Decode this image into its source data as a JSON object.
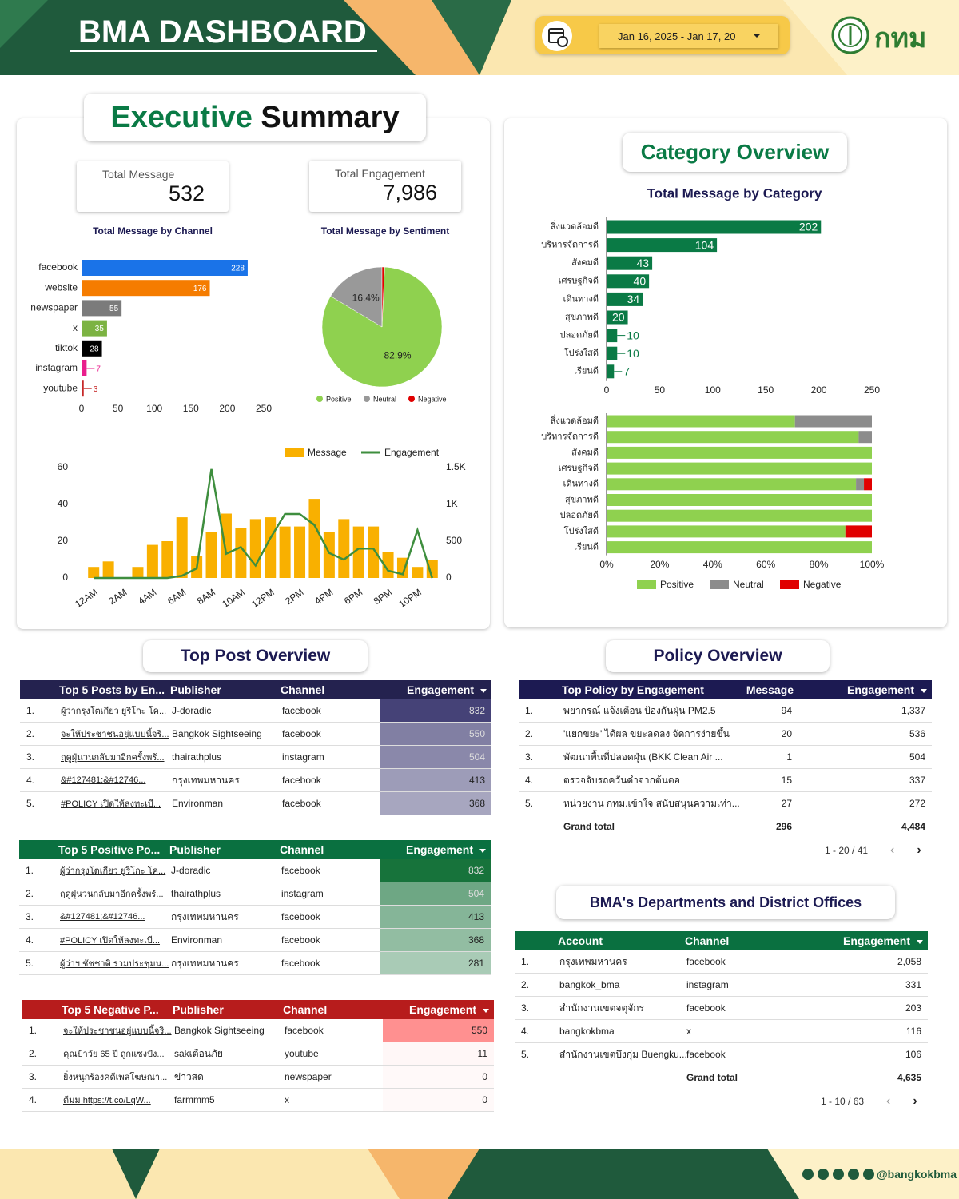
{
  "header": {
    "title": "BMA DASHBOARD",
    "date_range": "Jan 16, 2025 - Jan 17, 20",
    "logo_text": "กทม"
  },
  "executive_summary": {
    "title_1": "Executive",
    "title_2": "Summary",
    "kpis": [
      {
        "label": "Total Message",
        "value": 532
      },
      {
        "label": "Total Engagement",
        "value": "7,986"
      }
    ]
  },
  "category_overview": {
    "title": "Category Overview"
  },
  "chart_data": [
    {
      "type": "hbar",
      "title": "Total Message by Channel",
      "categories": [
        "facebook",
        "website",
        "newspaper",
        "x",
        "tiktok",
        "instagram",
        "youtube"
      ],
      "values": [
        228,
        176,
        55,
        35,
        28,
        7,
        3
      ],
      "colors": [
        "#1a73e8",
        "#f57c00",
        "#7b7b7b",
        "#7cb342",
        "#000000",
        "#e91e8c",
        "#c62828"
      ],
      "xlim": [
        0,
        250
      ],
      "xticks": [
        0,
        50,
        100,
        150,
        200,
        250
      ]
    },
    {
      "type": "pie",
      "title": "Total Message by Sentiment",
      "categories": [
        "Positive",
        "Neutral",
        "Negative"
      ],
      "values": [
        82.9,
        16.4,
        0.7
      ],
      "value_labels": [
        "82.9%",
        "16.4%",
        null
      ],
      "colors": [
        "#8fd14f",
        "#999999",
        "#e00000"
      ]
    },
    {
      "type": "combo",
      "categories": [
        "12AM",
        null,
        "2AM",
        null,
        "4AM",
        null,
        "6AM",
        null,
        "8AM",
        null,
        "10AM",
        null,
        "12PM",
        null,
        "2PM",
        null,
        "4PM",
        null,
        "6PM",
        null,
        "8PM",
        null,
        "10PM",
        null
      ],
      "series": [
        {
          "name": "Message",
          "color": "#f9b000",
          "values": [
            6,
            9,
            0,
            6,
            18,
            20,
            33,
            12,
            25,
            35,
            27,
            32,
            33,
            28,
            28,
            43,
            25,
            32,
            28,
            28,
            14,
            11,
            6,
            10
          ]
        },
        {
          "name": "Engagement",
          "color": "#3e8e3e",
          "axis": "y2",
          "values": [
            0,
            0,
            0,
            0,
            0,
            0,
            30,
            130,
            1480,
            330,
            420,
            170,
            540,
            870,
            870,
            720,
            340,
            250,
            400,
            400,
            100,
            50,
            650,
            0
          ]
        }
      ],
      "ylim": [
        0,
        60
      ],
      "yticks": [
        0,
        20,
        40,
        60
      ],
      "y2lim": [
        0,
        1500
      ],
      "y2ticks": [
        0,
        500,
        {
          "value": 1000,
          "label": "1K"
        },
        {
          "value": 1500,
          "label": "1.5K"
        }
      ]
    },
    {
      "type": "hbar",
      "title": "Total Message by Category",
      "categories": [
        "สิ่งแวดล้อมดี",
        "บริหารจัดการดี",
        "สังคมดี",
        "เศรษฐกิจดี",
        "เดินทางดี",
        "สุขภาพดี",
        "ปลอดภัยดี",
        "โปร่งใสดี",
        "เรียนดี"
      ],
      "values": [
        202,
        104,
        43,
        40,
        34,
        20,
        10,
        10,
        7
      ],
      "color": "#0a7a45",
      "xlim": [
        0,
        250
      ],
      "xticks": [
        0,
        50,
        100,
        150,
        200,
        250
      ]
    },
    {
      "type": "stacked_hbar",
      "categories": [
        "สิ่งแวดล้อมดี",
        "บริหารจัดการดี",
        "สังคมดี",
        "เศรษฐกิจดี",
        "เดินทางดี",
        "สุขภาพดี",
        "ปลอดภัยดี",
        "โปร่งใสดี",
        "เรียนดี"
      ],
      "series": [
        {
          "name": "Positive",
          "color": "#8fd14f",
          "values": [
            71,
            95,
            100,
            100,
            94,
            100,
            100,
            90,
            100
          ]
        },
        {
          "name": "Neutral",
          "color": "#8c8c8c",
          "values": [
            29,
            5,
            0,
            0,
            3,
            0,
            0,
            0,
            0
          ]
        },
        {
          "name": "Negative",
          "color": "#e00000",
          "values": [
            0,
            0,
            0,
            0,
            3,
            0,
            0,
            10,
            0
          ]
        }
      ],
      "xlim": [
        0,
        100
      ],
      "xticks": [
        {
          "value": 0,
          "label": "0%"
        },
        {
          "value": 20,
          "label": "20%"
        },
        {
          "value": 40,
          "label": "40%"
        },
        {
          "value": 60,
          "label": "60%"
        },
        {
          "value": 80,
          "label": "80%"
        },
        {
          "value": 100,
          "label": "100%"
        }
      ]
    }
  ],
  "top_post_overview": {
    "title": "Top Post Overview",
    "tables": [
      {
        "header_color": "#24224f",
        "heat_color": "#3b3870",
        "columns": [
          "Top 5 Posts by En...",
          "Publisher",
          "Channel",
          "Engagement"
        ],
        "rows": [
          [
            "1.",
            "ผู้ว่ากรุงโตเกียว ยูริโกะ โค...",
            "J-doradic",
            "facebook",
            832
          ],
          [
            "2.",
            "จะให้ประชาชนอยู่แบบนี้จริ...",
            "Bangkok Sightseeing",
            "facebook",
            550
          ],
          [
            "3.",
            "ฤดูฝุ่นวนกลับมาอีกครั้งพร้...",
            "thairathplus",
            "instagram",
            504
          ],
          [
            "4.",
            "&#127481;&#12746...",
            "กรุงเทพมหานคร",
            "facebook",
            413
          ],
          [
            "5.",
            "#POLICY เปิดให้ลงทะเบี...",
            "Environman",
            "facebook",
            368
          ]
        ]
      },
      {
        "header_color": "#0a7040",
        "heat_color": "#0b6b30",
        "columns": [
          "Top 5 Positive Po...",
          "Publisher",
          "Channel",
          "Engagement"
        ],
        "rows": [
          [
            "1.",
            "ผู้ว่ากรุงโตเกียว ยูริโกะ โค...",
            "J-doradic",
            "facebook",
            832
          ],
          [
            "2.",
            "ฤดูฝุ่นวนกลับมาอีกครั้งพร้...",
            "thairathplus",
            "instagram",
            504
          ],
          [
            "3.",
            "&#127481;&#12746...",
            "กรุงเทพมหานคร",
            "facebook",
            413
          ],
          [
            "4.",
            "#POLICY เปิดให้ลงทะเบี...",
            "Environman",
            "facebook",
            368
          ],
          [
            "5.",
            "ผู้ว่าฯ ชัชชาติ ร่วมประชุมน...",
            "กรุงเทพมหานคร",
            "facebook",
            281
          ]
        ]
      },
      {
        "header_color": "#b71c1c",
        "heat_color": "#ff8a8a",
        "columns": [
          "Top 5 Negative P...",
          "Publisher",
          "Channel",
          "Engagement"
        ],
        "rows": [
          [
            "1.",
            "จะให้ประชาชนอยู่แบบนี้จริ...",
            "Bangkok Sightseeing",
            "facebook",
            550
          ],
          [
            "2.",
            "คุณป้าวัย 65 ปี ถูกแซงปัง...",
            "sakเตือนภัย",
            "youtube",
            11
          ],
          [
            "3.",
            "ยิ่งหนูกร้องคดีเพลโฆษณา...",
            "ข่าวสด",
            "newspaper",
            0
          ],
          [
            "4.",
            "ดีมม https://t.co/LqW...",
            "farmmm5",
            "x",
            0
          ]
        ]
      }
    ]
  },
  "policy_overview": {
    "title": "Policy Overview",
    "table": {
      "header_color": "#1c1a52",
      "columns": [
        "Top Policy by Engagement",
        "Message",
        "Engagement"
      ],
      "rows": [
        [
          "1.",
          "พยากรณ์ แจ้งเตือน ป้องกันฝุ่น PM2.5",
          94,
          "1,337"
        ],
        [
          "2.",
          "'แยกขยะ' ได้ผล ขยะลดลง จัดการง่ายขึ้น",
          20,
          536
        ],
        [
          "3.",
          "พัฒนาพื้นที่ปลอดฝุ่น (BKK Clean Air ...",
          1,
          504
        ],
        [
          "4.",
          "ตรวจจับรถควันดำจากต้นตอ",
          15,
          337
        ],
        [
          "5.",
          "หน่วยงาน กทม.เข้าใจ สนับสนุนความเท่า...",
          27,
          272
        ]
      ],
      "grand_total": [
        "Grand total",
        296,
        "4,484"
      ],
      "pagination": "1 - 20 / 41"
    }
  },
  "departments": {
    "title": "BMA's Departments and District Offices",
    "table": {
      "header_color": "#0a7040",
      "columns": [
        "Account",
        "Channel",
        "Engagement"
      ],
      "rows": [
        [
          "1.",
          "กรุงเทพมหานคร",
          "facebook",
          "2,058"
        ],
        [
          "2.",
          "bangkok_bma",
          "instagram",
          331
        ],
        [
          "3.",
          "สำนักงานเขตจตุจักร",
          "facebook",
          203
        ],
        [
          "4.",
          "bangkokbma",
          "x",
          116
        ],
        [
          "5.",
          "สำนักงานเขตบึงกุ่ม Buengku...",
          "facebook",
          106
        ]
      ],
      "grand_total": [
        "Grand total",
        "4,635"
      ],
      "pagination": "1 - 10 / 63"
    }
  },
  "footer": {
    "handle": "@bangkokbma"
  }
}
